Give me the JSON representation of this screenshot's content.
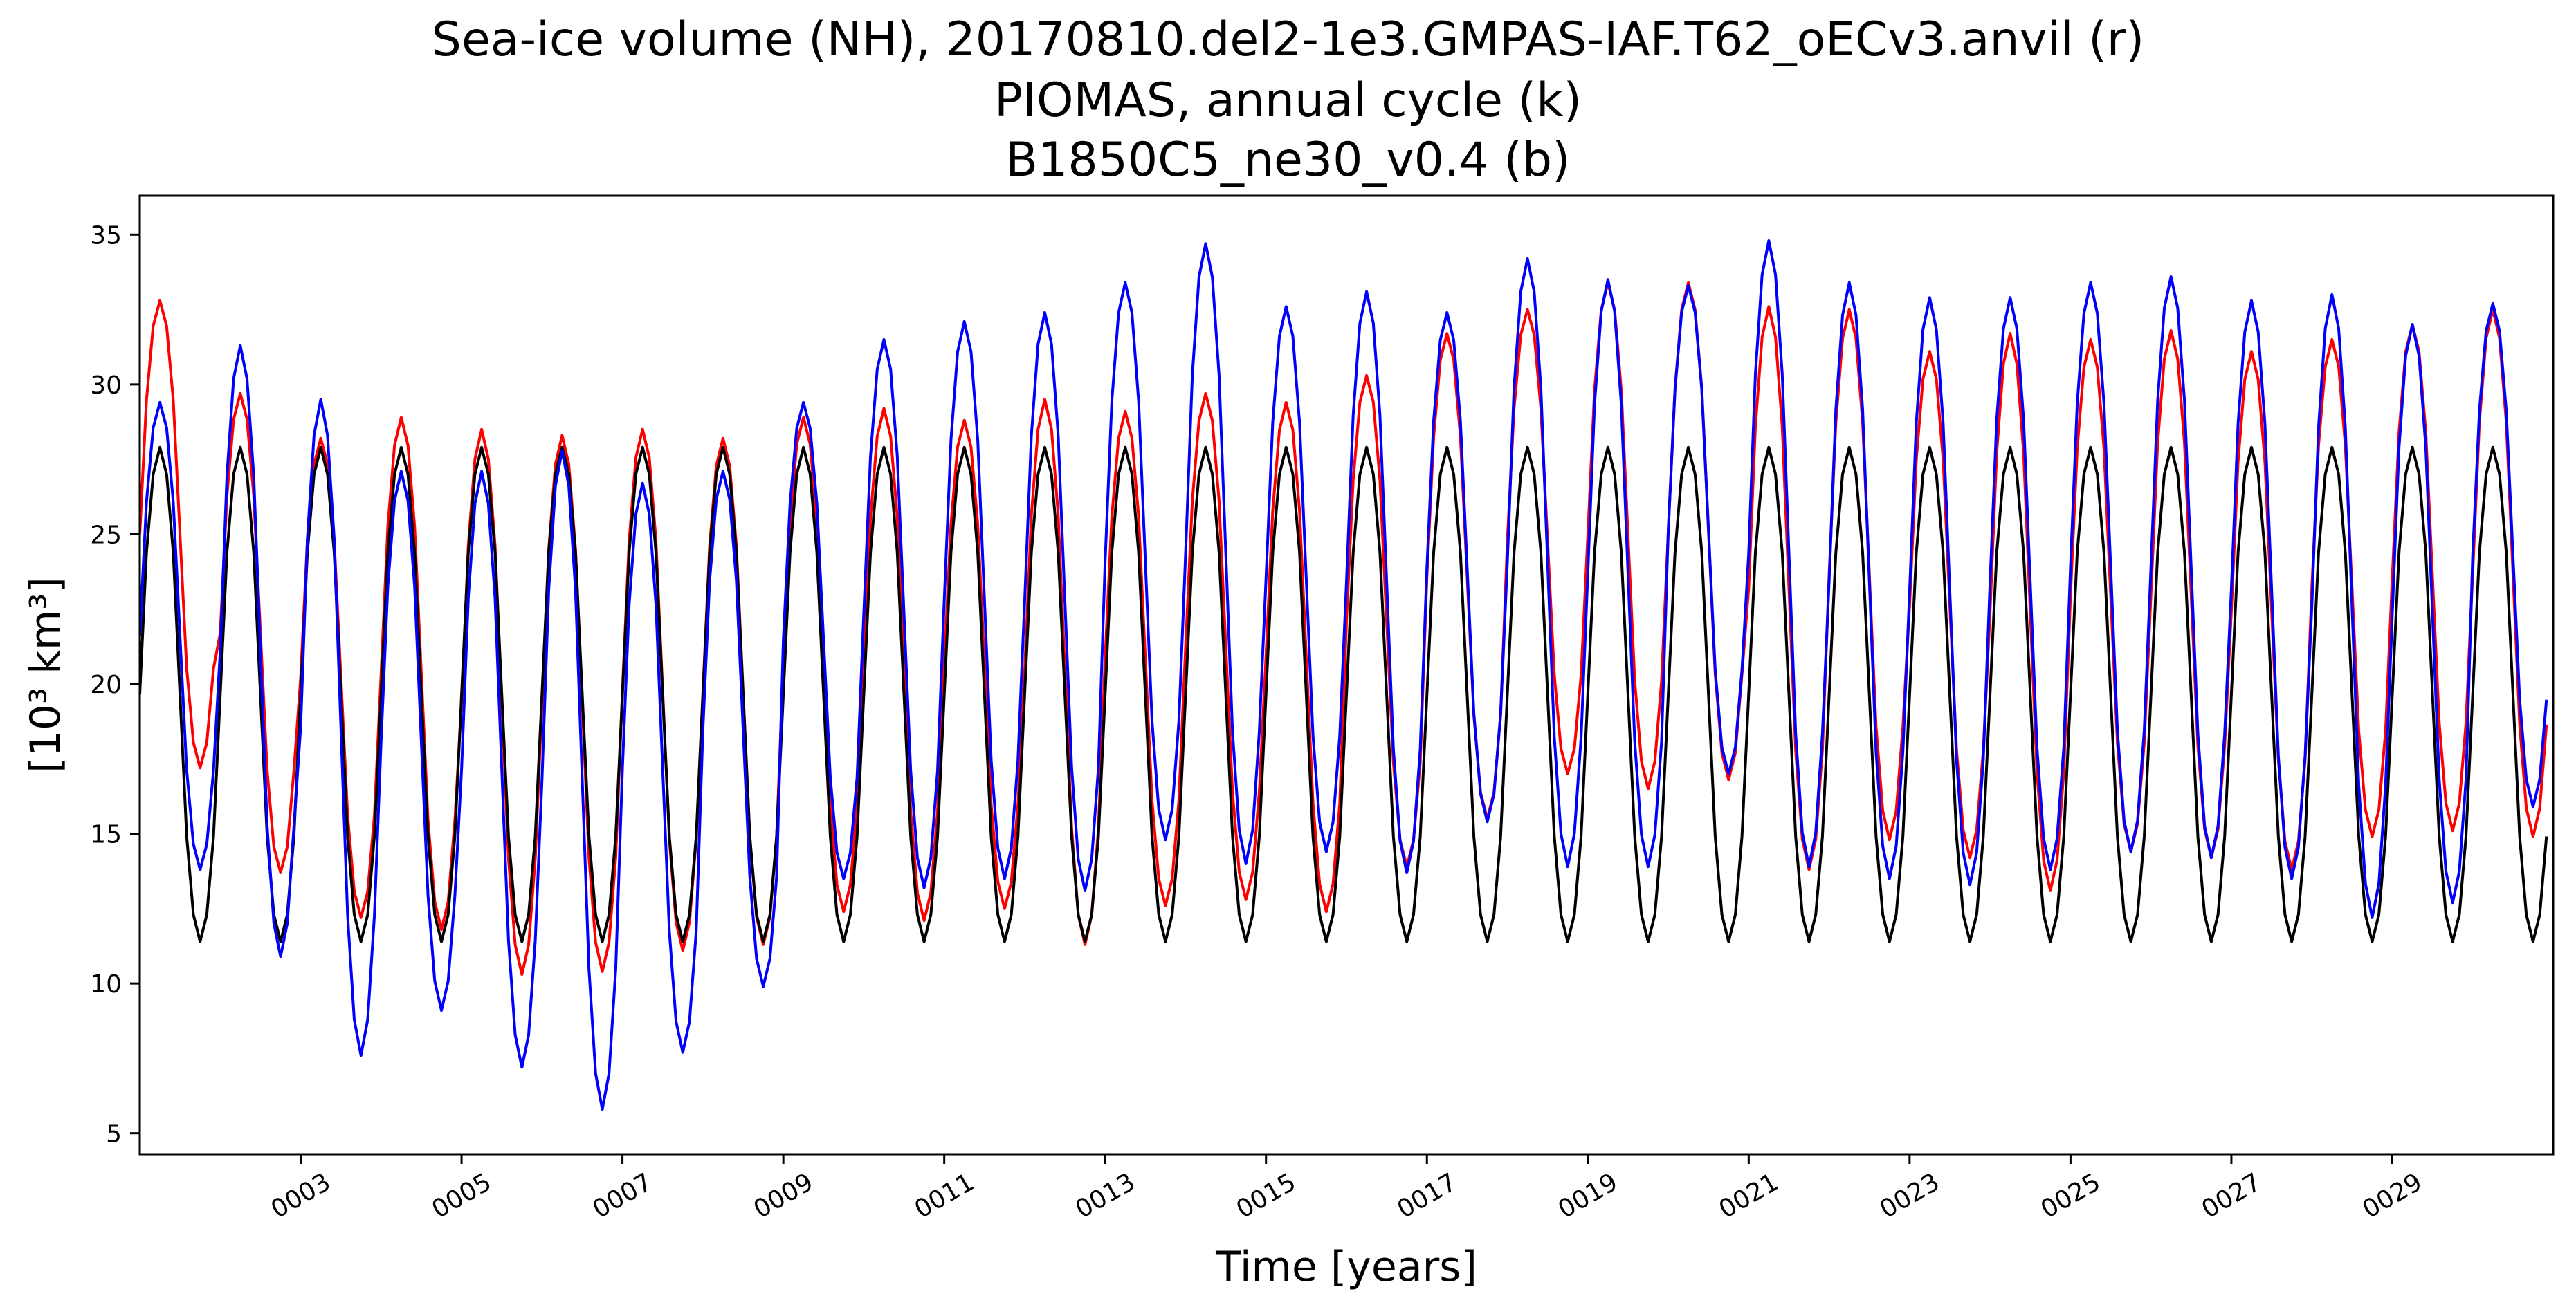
{
  "chart_data": {
    "type": "line",
    "title": [
      "Sea-ice volume (NH), 20170810.del2-1e3.GMPAS-IAF.T62_oECv3.anvil (r)",
      "PIOMAS, annual cycle (k)",
      "B1850C5_ne30_v0.4 (b)"
    ],
    "xlabel": "Time [years]",
    "ylabel": "[10³ km³]",
    "xlim": [
      1.0,
      31.0
    ],
    "ylim": [
      4.3,
      36.3
    ],
    "x_ticks": [
      3,
      5,
      7,
      9,
      11,
      13,
      15,
      17,
      19,
      21,
      23,
      25,
      27,
      29
    ],
    "x_tick_labels": [
      "0003",
      "0005",
      "0007",
      "0009",
      "0011",
      "0013",
      "0015",
      "0017",
      "0019",
      "0021",
      "0023",
      "0025",
      "0027",
      "0029"
    ],
    "y_ticks": [
      5,
      10,
      15,
      20,
      25,
      30,
      35
    ],
    "y_tick_labels": [
      "5",
      "10",
      "15",
      "20",
      "25",
      "30",
      "35"
    ],
    "grid": false,
    "legend": "none",
    "x_samples_per_year": 12,
    "series": [
      {
        "color": "#ff0000",
        "style": "monthly",
        "max": [
          32.8,
          29.7,
          28.2,
          28.9,
          28.5,
          28.3,
          28.5,
          28.2,
          28.9,
          29.2,
          28.8,
          29.5,
          29.1,
          29.7,
          29.4,
          30.3,
          31.7,
          32.5,
          33.4,
          33.4,
          32.6,
          32.5,
          31.1,
          31.7,
          31.5,
          31.8,
          31.1,
          31.5,
          32.0,
          32.5
        ],
        "min": [
          17.2,
          13.7,
          12.2,
          11.8,
          10.3,
          10.4,
          11.1,
          11.3,
          12.4,
          12.1,
          12.5,
          11.3,
          12.6,
          12.8,
          12.4,
          13.9,
          15.5,
          17.0,
          16.5,
          16.8,
          13.8,
          14.8,
          14.2,
          13.1,
          14.4,
          14.2,
          13.8,
          14.9,
          15.1,
          14.9
        ]
      },
      {
        "color": "#000000",
        "style": "monthly",
        "max": [
          27.9,
          27.9,
          27.9,
          27.9,
          27.9,
          27.9,
          27.9,
          27.9,
          27.9,
          27.9,
          27.9,
          27.9,
          27.9,
          27.9,
          27.9,
          27.9,
          27.9,
          27.9,
          27.9,
          27.9,
          27.9,
          27.9,
          27.9,
          27.9,
          27.9,
          27.9,
          27.9,
          27.9,
          27.9,
          27.9
        ],
        "min": [
          11.4,
          11.4,
          11.4,
          11.4,
          11.4,
          11.4,
          11.4,
          11.4,
          11.4,
          11.4,
          11.4,
          11.4,
          11.4,
          11.4,
          11.4,
          11.4,
          11.4,
          11.4,
          11.4,
          11.4,
          11.4,
          11.4,
          11.4,
          11.4,
          11.4,
          11.4,
          11.4,
          11.4,
          11.4,
          11.4
        ]
      },
      {
        "color": "#0000ff",
        "style": "monthly",
        "max": [
          29.4,
          31.3,
          29.5,
          27.1,
          27.1,
          27.8,
          26.7,
          27.1,
          29.4,
          31.5,
          32.1,
          32.4,
          33.4,
          34.7,
          32.6,
          33.1,
          32.4,
          34.2,
          33.5,
          33.3,
          34.8,
          33.4,
          32.9,
          32.9,
          33.4,
          33.6,
          32.8,
          33.0,
          32.0,
          32.7
        ],
        "min": [
          13.8,
          10.9,
          7.6,
          9.1,
          7.2,
          5.8,
          7.7,
          9.9,
          13.5,
          13.2,
          13.5,
          13.1,
          14.8,
          14.0,
          14.4,
          13.7,
          15.4,
          13.9,
          13.9,
          17.0,
          13.9,
          13.5,
          13.3,
          13.8,
          14.4,
          14.2,
          13.5,
          12.2,
          12.7,
          15.9
        ]
      }
    ]
  }
}
